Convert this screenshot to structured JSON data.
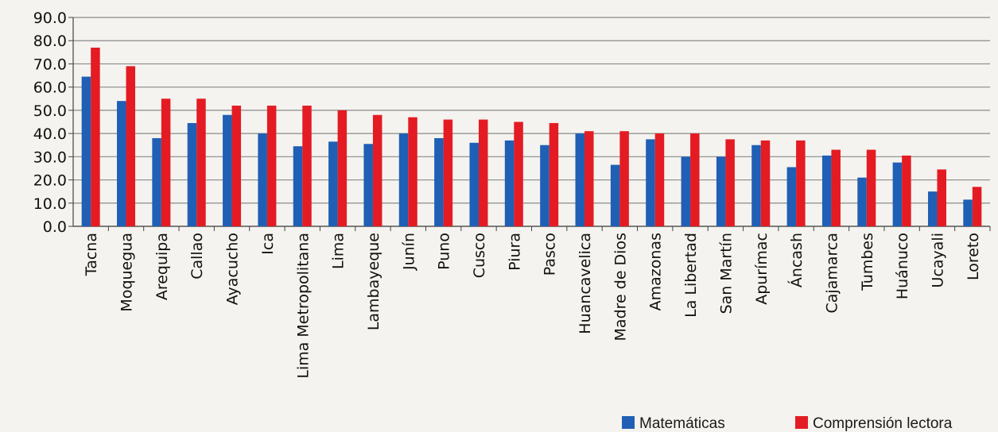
{
  "chart_data": {
    "type": "bar",
    "title": "",
    "xlabel": "",
    "ylabel": "",
    "ylim": [
      0,
      90
    ],
    "yticks": [
      "0.0",
      "10.0",
      "20.0",
      "30.0",
      "40.0",
      "50.0",
      "60.0",
      "70.0",
      "80.0",
      "90.0"
    ],
    "grid": true,
    "legend_position": "bottom-right",
    "categories": [
      "Tacna",
      "Moquegua",
      "Arequipa",
      "Callao",
      "Ayacucho",
      "Ica",
      "Lima Metropolitana",
      "Lima",
      "Lambayeque",
      "Junín",
      "Puno",
      "Cusco",
      "Piura",
      "Pasco",
      "Huancavelica",
      "Madre de Dios",
      "Amazonas",
      "La Libertad",
      "San Martín",
      "Apurímac",
      "Áncash",
      "Cajamarca",
      "Tumbes",
      "Huánuco",
      "Ucayali",
      "Loreto"
    ],
    "series": [
      {
        "name": "Matemáticas",
        "color": "#1f5fb5",
        "values": [
          64.5,
          54.0,
          38.0,
          44.5,
          48.0,
          40.0,
          34.5,
          36.5,
          35.5,
          40.0,
          38.0,
          36.0,
          37.0,
          35.0,
          40.0,
          26.5,
          37.5,
          30.0,
          30.0,
          35.0,
          25.5,
          30.5,
          21.0,
          27.5,
          15.0,
          11.5
        ]
      },
      {
        "name": "Comprensión lectora",
        "color": "#e41b23",
        "values": [
          77.0,
          69.0,
          55.0,
          55.0,
          52.0,
          52.0,
          52.0,
          50.0,
          48.0,
          47.0,
          46.0,
          46.0,
          45.0,
          44.5,
          41.0,
          41.0,
          40.0,
          40.0,
          37.5,
          37.0,
          37.0,
          33.0,
          33.0,
          30.5,
          24.5,
          17.0
        ]
      }
    ]
  }
}
